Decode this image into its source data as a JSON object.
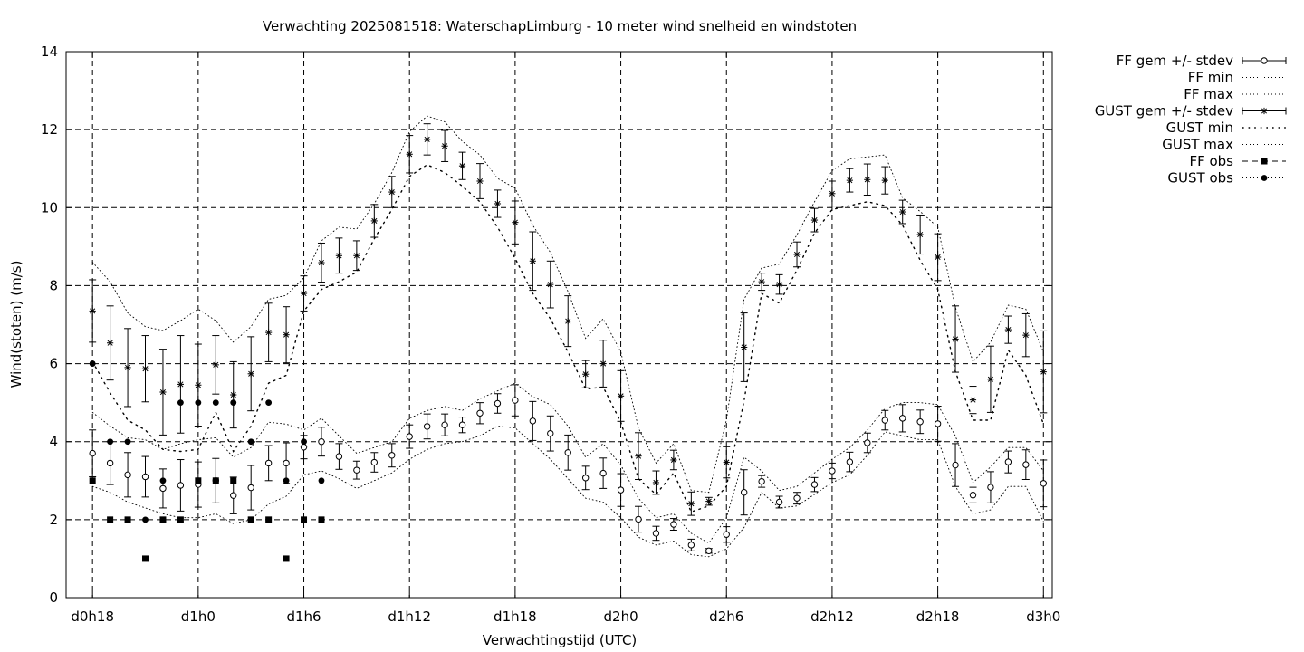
{
  "chart_data": {
    "type": "line",
    "title": "Verwachting 2025081518: WaterschapLimburg - 10 meter wind snelheid en windstoten",
    "xlabel": "Verwachtingstijd (UTC)",
    "ylabel": "Wind(stoten) (m/s)",
    "xlim": [
      -1.5,
      54.5
    ],
    "ylim": [
      0,
      14
    ],
    "grid": true,
    "legend_position": "outside-right-top",
    "x_ticks": [
      {
        "x": 0,
        "label": "d0h18"
      },
      {
        "x": 6,
        "label": "d1h0"
      },
      {
        "x": 12,
        "label": "d1h6"
      },
      {
        "x": 18,
        "label": "d1h12"
      },
      {
        "x": 24,
        "label": "d1h18"
      },
      {
        "x": 30,
        "label": "d2h0"
      },
      {
        "x": 36,
        "label": "d2h6"
      },
      {
        "x": 42,
        "label": "d2h12"
      },
      {
        "x": 48,
        "label": "d2h18"
      },
      {
        "x": 54,
        "label": "d3h0"
      }
    ],
    "y_ticks": [
      0,
      2,
      4,
      6,
      8,
      10,
      12,
      14
    ],
    "x": [
      0,
      1,
      2,
      3,
      4,
      5,
      6,
      7,
      8,
      9,
      10,
      11,
      12,
      13,
      14,
      15,
      16,
      17,
      18,
      19,
      20,
      21,
      22,
      23,
      24,
      25,
      26,
      27,
      28,
      29,
      30,
      31,
      32,
      33,
      34,
      35,
      36,
      37,
      38,
      39,
      40,
      41,
      42,
      43,
      44,
      45,
      46,
      47,
      48,
      49,
      50,
      51,
      52,
      53,
      54
    ],
    "series": [
      {
        "name": "FF gem +/- stdev",
        "style": "errorbar-open-circle",
        "values": [
          3.7,
          3.45,
          3.15,
          3.1,
          2.8,
          2.88,
          2.9,
          3.0,
          2.62,
          2.82,
          3.45,
          3.45,
          3.86,
          4.0,
          3.62,
          3.27,
          3.47,
          3.65,
          4.13,
          4.39,
          4.43,
          4.43,
          4.73,
          4.98,
          5.06,
          4.53,
          4.21,
          3.72,
          3.07,
          3.19,
          2.76,
          2.01,
          1.65,
          1.88,
          1.35,
          1.2,
          1.62,
          2.7,
          2.98,
          2.45,
          2.55,
          2.9,
          3.25,
          3.48,
          3.97,
          4.55,
          4.6,
          4.51,
          4.46,
          3.4,
          2.63,
          2.83,
          3.48,
          3.41,
          2.93
        ],
        "stdev": [
          0.6,
          0.55,
          0.57,
          0.52,
          0.5,
          0.66,
          0.58,
          0.57,
          0.47,
          0.57,
          0.45,
          0.52,
          0.3,
          0.37,
          0.33,
          0.23,
          0.25,
          0.3,
          0.3,
          0.32,
          0.28,
          0.2,
          0.27,
          0.25,
          0.4,
          0.5,
          0.45,
          0.45,
          0.3,
          0.39,
          0.42,
          0.33,
          0.18,
          0.15,
          0.15,
          0.06,
          0.2,
          0.58,
          0.15,
          0.15,
          0.15,
          0.18,
          0.2,
          0.25,
          0.25,
          0.25,
          0.35,
          0.3,
          0.45,
          0.55,
          0.2,
          0.4,
          0.28,
          0.38,
          0.6
        ]
      },
      {
        "name": "FF min",
        "style": "dotted",
        "values": [
          2.85,
          2.7,
          2.45,
          2.3,
          2.15,
          2.05,
          2.05,
          2.15,
          1.9,
          2.0,
          2.4,
          2.6,
          3.15,
          3.25,
          3.05,
          2.8,
          3.0,
          3.2,
          3.55,
          3.8,
          3.95,
          4.0,
          4.15,
          4.4,
          4.35,
          3.95,
          3.55,
          3.05,
          2.55,
          2.45,
          2.05,
          1.55,
          1.35,
          1.45,
          1.1,
          1.05,
          1.25,
          1.8,
          2.7,
          2.3,
          2.35,
          2.65,
          2.95,
          3.15,
          3.65,
          4.25,
          4.15,
          4.05,
          4.05,
          2.85,
          2.15,
          2.25,
          2.85,
          2.85,
          1.95
        ]
      },
      {
        "name": "FF max",
        "style": "dotted",
        "values": [
          4.75,
          4.4,
          4.1,
          4.05,
          3.8,
          3.95,
          4.05,
          4.1,
          3.6,
          3.85,
          4.5,
          4.45,
          4.3,
          4.6,
          4.15,
          3.7,
          3.85,
          4.0,
          4.6,
          4.8,
          4.9,
          4.8,
          5.1,
          5.3,
          5.5,
          5.15,
          4.95,
          4.4,
          3.6,
          3.95,
          3.4,
          2.55,
          2.05,
          2.15,
          1.65,
          1.4,
          2.05,
          3.6,
          3.25,
          2.75,
          2.85,
          3.2,
          3.55,
          3.85,
          4.3,
          4.85,
          5.0,
          5.0,
          4.95,
          4.15,
          2.95,
          3.35,
          3.85,
          3.85,
          3.25
        ]
      },
      {
        "name": "GUST gem +/- stdev",
        "style": "errorbar-star",
        "values": [
          7.35,
          6.53,
          5.9,
          5.87,
          5.27,
          5.47,
          5.45,
          5.97,
          5.2,
          5.74,
          6.8,
          6.74,
          7.8,
          8.59,
          8.77,
          8.77,
          9.66,
          10.4,
          11.37,
          11.75,
          11.58,
          11.07,
          10.68,
          10.1,
          9.62,
          8.63,
          8.03,
          7.09,
          5.73,
          6.0,
          5.17,
          3.63,
          2.95,
          3.53,
          2.41,
          2.47,
          3.47,
          6.42,
          8.1,
          8.03,
          8.8,
          9.68,
          10.36,
          10.7,
          10.72,
          10.7,
          9.89,
          9.31,
          8.73,
          6.63,
          5.07,
          5.6,
          6.87,
          6.73,
          5.79
        ],
        "stdev": [
          0.8,
          0.95,
          1.0,
          0.85,
          1.1,
          1.25,
          1.05,
          0.75,
          0.85,
          0.95,
          0.75,
          0.72,
          0.45,
          0.5,
          0.45,
          0.38,
          0.42,
          0.4,
          0.48,
          0.4,
          0.4,
          0.35,
          0.45,
          0.35,
          0.55,
          0.75,
          0.6,
          0.65,
          0.35,
          0.6,
          0.65,
          0.6,
          0.3,
          0.25,
          0.3,
          0.1,
          0.4,
          0.88,
          0.22,
          0.25,
          0.32,
          0.3,
          0.32,
          0.3,
          0.4,
          0.35,
          0.3,
          0.5,
          0.6,
          0.85,
          0.35,
          0.85,
          0.35,
          0.55,
          1.05
        ]
      },
      {
        "name": "GUST min",
        "style": "dotted-sparse",
        "values": [
          6.05,
          5.25,
          4.55,
          4.3,
          3.8,
          3.75,
          3.8,
          4.75,
          3.75,
          4.4,
          5.5,
          5.7,
          7.35,
          7.9,
          8.1,
          8.35,
          9.2,
          9.95,
          10.8,
          11.1,
          10.9,
          10.55,
          10.15,
          9.5,
          8.7,
          7.8,
          7.15,
          6.3,
          5.35,
          5.4,
          4.5,
          3.05,
          2.65,
          3.2,
          2.2,
          2.35,
          2.85,
          5.05,
          7.8,
          7.55,
          8.4,
          9.35,
          9.95,
          10.05,
          10.15,
          10.05,
          9.55,
          8.65,
          7.9,
          5.8,
          4.55,
          4.55,
          6.35,
          5.7,
          4.45
        ]
      },
      {
        "name": "GUST max",
        "style": "dotted",
        "values": [
          8.6,
          8.1,
          7.3,
          6.95,
          6.85,
          7.1,
          7.4,
          7.1,
          6.55,
          6.95,
          7.65,
          7.75,
          8.2,
          9.15,
          9.5,
          9.45,
          10.1,
          10.9,
          11.95,
          12.35,
          12.2,
          11.7,
          11.35,
          10.75,
          10.5,
          9.55,
          8.85,
          7.85,
          6.65,
          7.15,
          6.3,
          4.35,
          3.45,
          3.95,
          2.75,
          2.7,
          4.55,
          7.65,
          8.45,
          8.55,
          9.3,
          10.15,
          10.95,
          11.25,
          11.3,
          11.35,
          10.25,
          9.9,
          9.5,
          7.45,
          6.05,
          6.55,
          7.5,
          7.4,
          6.3
        ]
      },
      {
        "name": "FF obs",
        "style": "filled-square",
        "x": [
          0,
          1,
          2,
          3,
          4,
          5,
          6,
          7,
          8,
          9,
          10,
          11,
          12,
          13
        ],
        "values": [
          3,
          2,
          2,
          1,
          2,
          2,
          3,
          3,
          3,
          2,
          2,
          1,
          2,
          2
        ]
      },
      {
        "name": "GUST obs",
        "style": "filled-circle",
        "x": [
          0,
          1,
          2,
          3,
          4,
          5,
          6,
          7,
          8,
          9,
          10,
          11,
          12,
          13
        ],
        "values": [
          6,
          4,
          4,
          2,
          3,
          5,
          5,
          5,
          5,
          4,
          5,
          3,
          4,
          3
        ]
      }
    ]
  }
}
